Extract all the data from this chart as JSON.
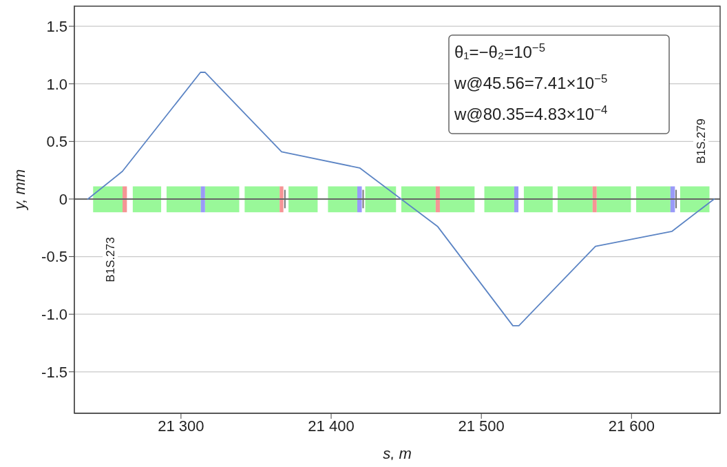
{
  "chart_data": {
    "type": "line",
    "xlabel": "s, m",
    "ylabel": "y, mm",
    "x": [
      21238,
      21261,
      21313,
      21316,
      21367,
      21419,
      21471,
      21521,
      21525,
      21576,
      21627,
      21655
    ],
    "series": [
      {
        "color": "#5b84c4",
        "values": [
          0,
          0.24,
          1.1,
          1.1,
          0.41,
          0.27,
          -0.24,
          -1.1,
          -1.1,
          -0.41,
          -0.28,
          0
        ]
      }
    ],
    "xlim": [
      21229,
      21659
    ],
    "xticks": [
      {
        "value": 21300,
        "label": "21 300"
      },
      {
        "value": 21400,
        "label": "21 400"
      },
      {
        "value": 21500,
        "label": "21 500"
      },
      {
        "value": 21600,
        "label": "21 600"
      }
    ],
    "ylim": [
      -1.86,
      1.68
    ],
    "yticks": [
      {
        "value": -1.5,
        "label": "-1.5"
      },
      {
        "value": -1,
        "label": "-1.0"
      },
      {
        "value": -0.5,
        "label": "-0.5"
      },
      0,
      0.5,
      {
        "value": 1,
        "label": "1.0"
      },
      1.5
    ],
    "grid": "y",
    "marker": "none",
    "line_style": "solid",
    "ref_lines": [
      {
        "axis": "y",
        "value": 0,
        "color": "#666666"
      }
    ],
    "annotations": [
      "θ₁=−θ₂=10$^{−5}$",
      "w@45.56=7.41×10$^{−5}$",
      "w@80.35=4.83×10$^{−4}$",
      "B1S.273",
      "B1S.279"
    ]
  }
}
